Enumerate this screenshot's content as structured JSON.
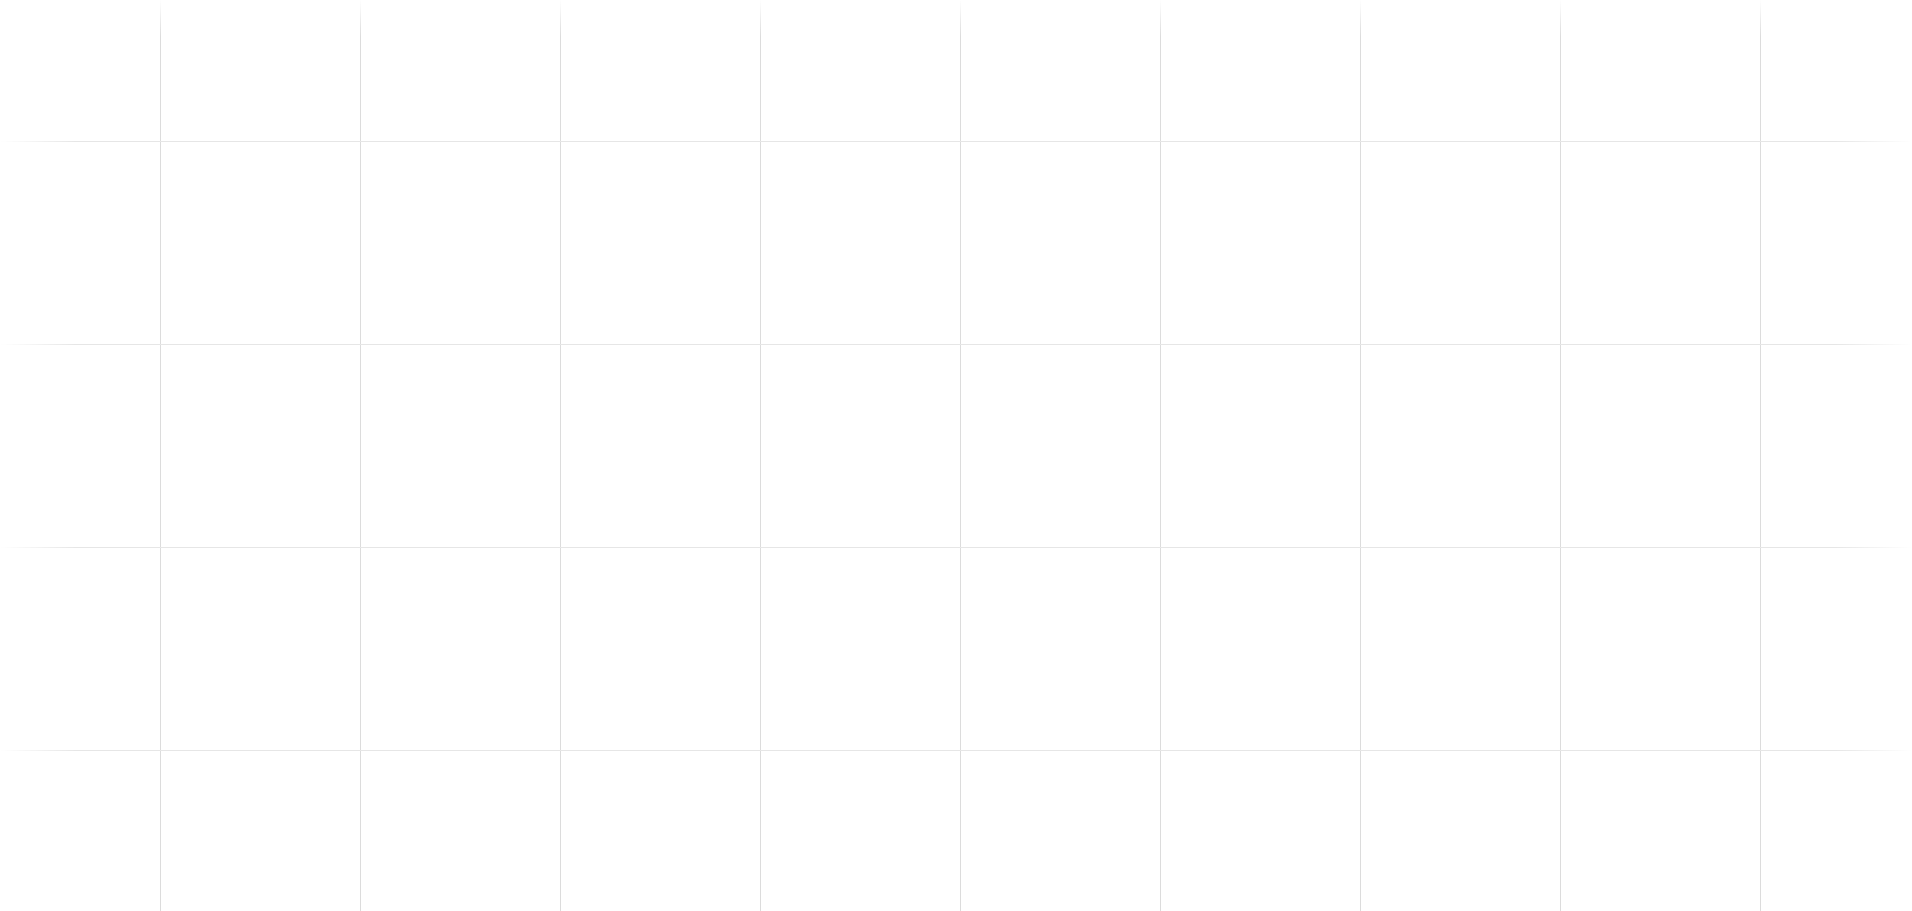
{
  "canvas": {
    "grid_color": "#dcdcdc",
    "background_color": "#ffffff"
  }
}
